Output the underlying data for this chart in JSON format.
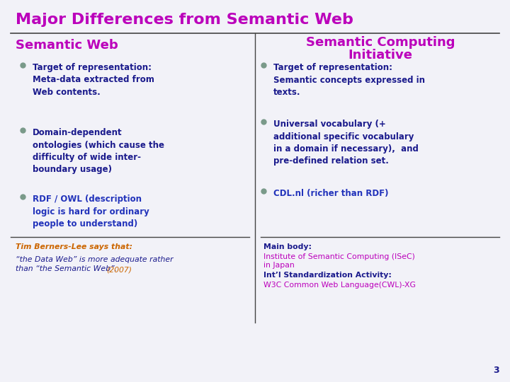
{
  "title": "Major Differences from Semantic Web",
  "title_color": "#bb00bb",
  "title_fontsize": 16,
  "bg_color": "#f2f2f8",
  "left_header": "Semantic Web",
  "right_header_line1": "Semantic Computing",
  "right_header_line2": "Initiative",
  "header_color": "#bb00bb",
  "header_fontsize": 13,
  "bullet_color": "#7a9a8a",
  "bullet_size": 5,
  "left_bullets": [
    "Target of representation:\nMeta-data extracted from\nWeb contents.",
    "Domain-dependent\nontologies (which cause the\ndifficulty of wide inter-\nboundary usage)",
    "RDF / OWL (description\nlogic is hard for ordinary\npeople to understand)"
  ],
  "left_bullet_colors": [
    "#1a1a8c",
    "#1a1a8c",
    "#2233bb"
  ],
  "right_bullets": [
    "Target of representation:\nSemantic concepts expressed in\ntexts.",
    "Universal vocabulary (+\nadditional specific vocabulary\nin a domain if necessary),  and\npre-defined relation set.",
    "CDL.nl (richer than RDF)"
  ],
  "right_bullet_colors": [
    "#1a1a8c",
    "#1a1a8c",
    "#2233bb"
  ],
  "left_footer_line1": "Tim Berners-Lee says that:",
  "left_footer_line1_color": "#cc6600",
  "left_footer_line2a": "“the Data Web” is more adequate rather\nthan “the Semantic Web”. ",
  "left_footer_line2b": "(2007)",
  "left_footer_body_color": "#1a1a8c",
  "left_footer_year_color": "#cc6600",
  "right_footer": [
    [
      "Main body:",
      "#1a1a8c",
      true
    ],
    [
      "Institute of Semantic Computing (ISeC)\nin Japan",
      "#bb00bb",
      false
    ],
    [
      "Int’l Standardization Activity:",
      "#1a1a8c",
      true
    ],
    [
      "W3C Common Web Language(CWL)-XG",
      "#bb00bb",
      false
    ]
  ],
  "page_number": "3",
  "divider_color": "#444444",
  "text_fontsize": 8.5,
  "footer_fontsize": 7.8
}
